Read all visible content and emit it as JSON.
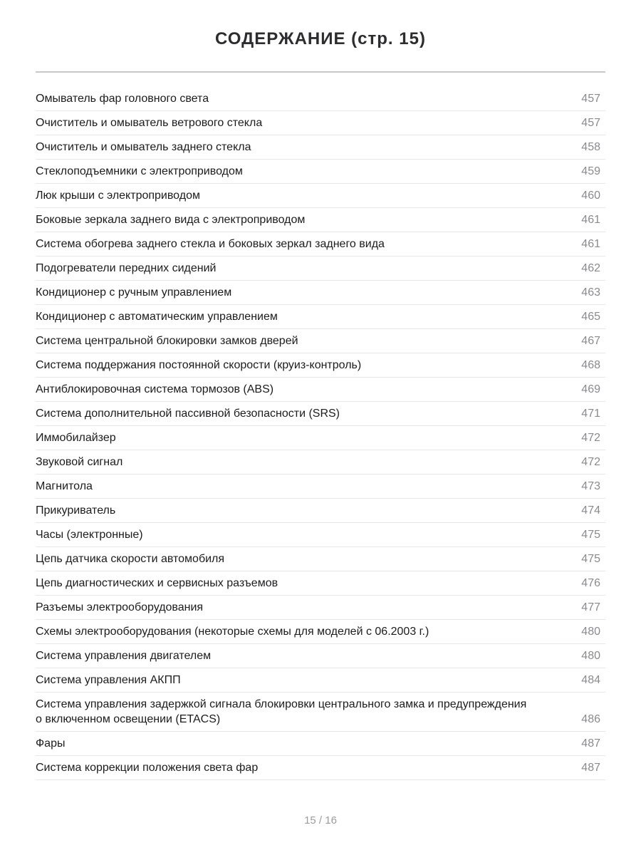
{
  "page": {
    "title": "СОДЕРЖАНИЕ (стр. 15)",
    "footer": "15 / 16"
  },
  "colors": {
    "background": "#ffffff",
    "title_text": "#2d2d30",
    "item_text": "#1c1c1e",
    "page_number_text": "#8a8a8f",
    "title_divider": "#c8c8cb",
    "row_divider": "#e7e7ea",
    "footer_text": "#9b9ba1"
  },
  "toc": {
    "items": [
      {
        "label": "Омыватель фар головного света",
        "page": "457"
      },
      {
        "label": "Очиститель и омыватель ветрового стекла",
        "page": "457"
      },
      {
        "label": "Очиститель и омыватель заднего стекла",
        "page": "458"
      },
      {
        "label": "Стеклоподъемники с электроприводом",
        "page": "459"
      },
      {
        "label": "Люк крыши с электроприводом",
        "page": "460"
      },
      {
        "label": "Боковые зеркала заднего вида с электроприводом",
        "page": "461"
      },
      {
        "label": "Система обогрева заднего стекла и боковых зеркал заднего вида",
        "page": "461"
      },
      {
        "label": "Подогреватели передних сидений",
        "page": "462"
      },
      {
        "label": "Кондиционер с ручным управлением",
        "page": "463"
      },
      {
        "label": "Кондиционер с автоматическим управлением",
        "page": "465"
      },
      {
        "label": "Система центральной блокировки замков дверей",
        "page": "467"
      },
      {
        "label": "Система поддержания постоянной скорости (круиз-контроль)",
        "page": "468"
      },
      {
        "label": "Антиблокировочная система тормозов (ABS)",
        "page": "469"
      },
      {
        "label": "Система дополнительной пассивной безопасности (SRS)",
        "page": "471"
      },
      {
        "label": "Иммобилайзер",
        "page": "472"
      },
      {
        "label": "Звуковой сигнал",
        "page": "472"
      },
      {
        "label": "Магнитола",
        "page": "473"
      },
      {
        "label": "Прикуриватель",
        "page": "474"
      },
      {
        "label": "Часы (электронные)",
        "page": "475"
      },
      {
        "label": "Цепь датчика скорости автомобиля",
        "page": "475"
      },
      {
        "label": "Цепь диагностических и сервисных разъемов",
        "page": "476"
      },
      {
        "label": "Разъемы электрооборудования",
        "page": "477"
      },
      {
        "label": "Схемы электрооборудования (некоторые схемы для моделей с 06.2003 г.)",
        "page": "480"
      },
      {
        "label": "Система управления двигателем",
        "page": "480"
      },
      {
        "label": "Система управления АКПП",
        "page": "484"
      },
      {
        "label": "Система управления задержкой сигнала блокировки центрального замка и предупреждения о включенном освещении (ETACS)",
        "page": "486"
      },
      {
        "label": "Фары",
        "page": "487"
      },
      {
        "label": "Система коррекции положения света фар",
        "page": "487"
      }
    ]
  }
}
